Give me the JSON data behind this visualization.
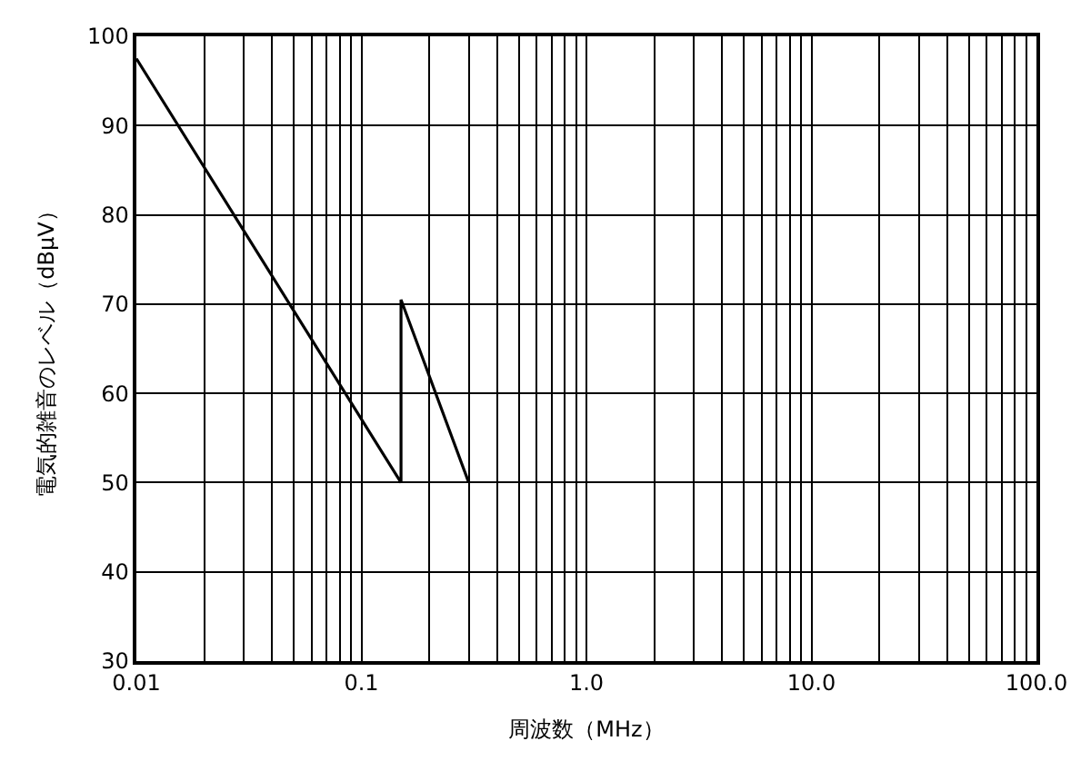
{
  "chart_data": {
    "type": "line",
    "xlabel": "周波数（MHz）",
    "ylabel": "電気的雑音のレベル（dBμV）",
    "series": [
      {
        "color": "#000000",
        "x": [
          0.01,
          0.15,
          0.15,
          0.3
        ],
        "values": [
          97.5,
          50,
          70.5,
          50
        ]
      }
    ],
    "log": "x",
    "xlim": [
      0.01,
      100
    ],
    "xticks": [
      {
        "value": 0.01,
        "label": "0.01"
      },
      {
        "value": 0.1,
        "label": "0.1"
      },
      {
        "value": 1,
        "label": "1.0"
      },
      {
        "value": 10,
        "label": "10.0"
      },
      {
        "value": 100,
        "label": "100.0"
      }
    ],
    "ylim": [
      30,
      100
    ],
    "yticks": [
      30,
      40,
      50,
      60,
      70,
      80,
      90,
      100
    ],
    "grid": true,
    "marker": "none",
    "line_style": "solid"
  }
}
